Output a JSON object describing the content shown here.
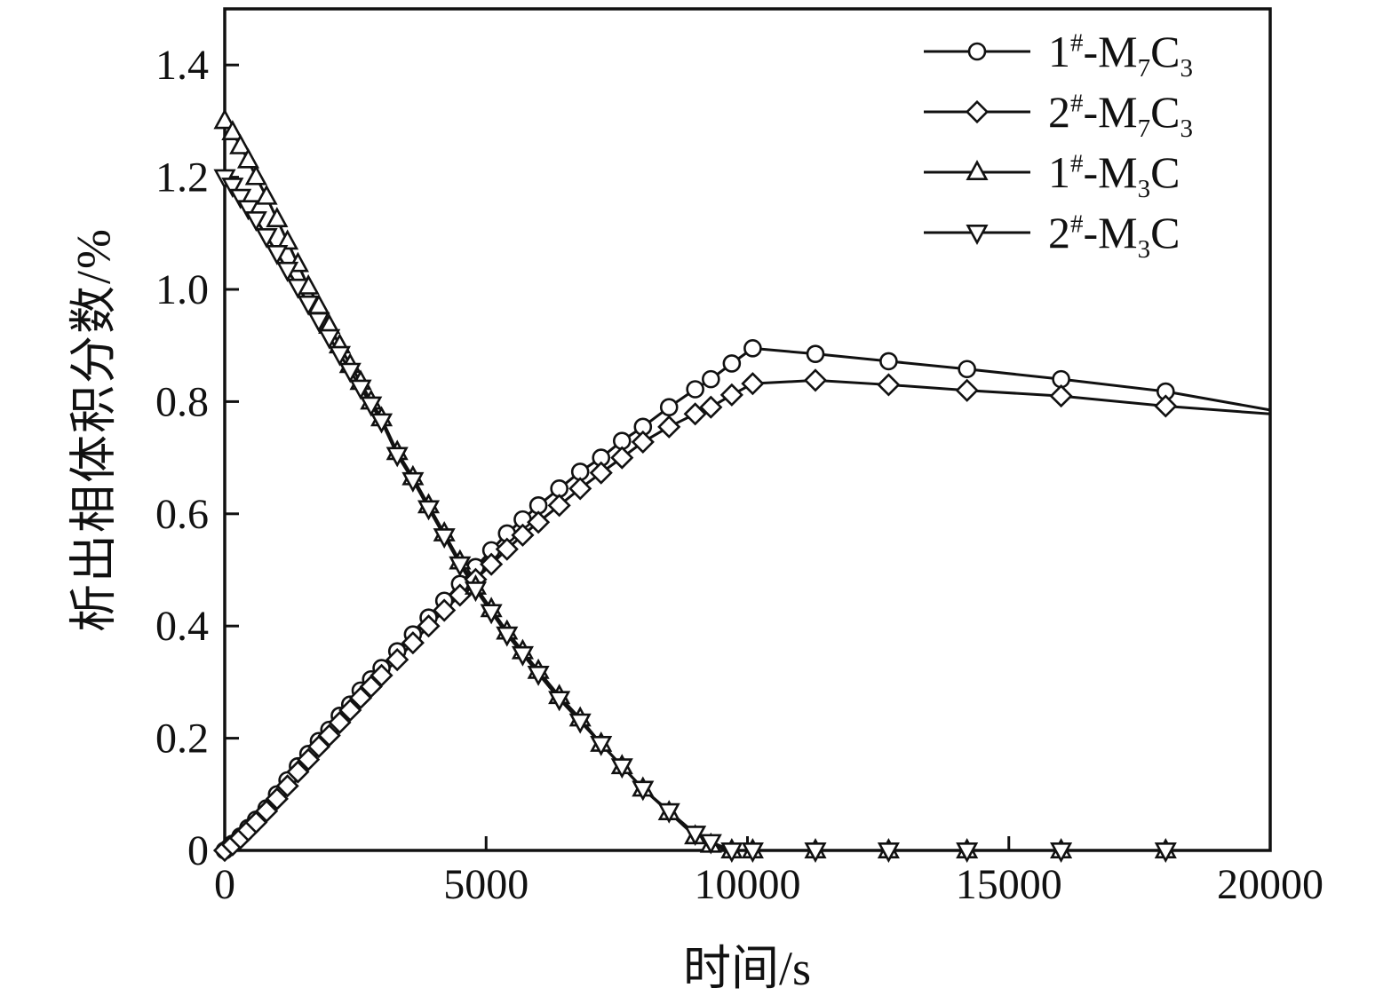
{
  "figure": {
    "background": "#ffffff",
    "line_color": "#111111"
  },
  "chart_data": {
    "type": "line",
    "title": "",
    "xlabel": "时间/s",
    "ylabel": "析出相体积分数/%",
    "xlim": [
      0,
      20000
    ],
    "ylim": [
      0,
      1.5
    ],
    "grid": false,
    "legend_position": "top-right",
    "x_ticks": [
      0,
      5000,
      10000,
      15000,
      20000
    ],
    "x_tick_labels": [
      "0",
      "5000",
      "10000",
      "15000",
      "20000"
    ],
    "y_ticks": [
      0,
      0.2,
      0.4,
      0.6,
      0.8,
      1.0,
      1.2,
      1.4
    ],
    "y_tick_labels": [
      "0",
      "0.2",
      "0.4",
      "0.6",
      "0.8",
      "1.0",
      "1.2",
      "1.4"
    ],
    "x": [
      0,
      150,
      300,
      450,
      600,
      800,
      1000,
      1200,
      1400,
      1600,
      1800,
      2000,
      2200,
      2400,
      2600,
      2800,
      3000,
      3300,
      3600,
      3900,
      4200,
      4500,
      4800,
      5100,
      5400,
      5700,
      6000,
      6400,
      6800,
      7200,
      7600,
      8000,
      8500,
      9000,
      9300,
      9700,
      10100,
      11300,
      12700,
      14200,
      16000,
      18000,
      20000
    ],
    "series": [
      {
        "name": "1#-M7C3",
        "marker": "circle",
        "label_segments": [
          {
            "t": "1"
          },
          {
            "t": "#",
            "s": "sup"
          },
          {
            "t": "-M"
          },
          {
            "t": "7",
            "s": "sub"
          },
          {
            "t": "C"
          },
          {
            "t": "3",
            "s": "sub"
          }
        ],
        "values": [
          0,
          0.012,
          0.025,
          0.04,
          0.055,
          0.075,
          0.1,
          0.125,
          0.15,
          0.172,
          0.195,
          0.215,
          0.24,
          0.26,
          0.285,
          0.305,
          0.325,
          0.355,
          0.385,
          0.415,
          0.445,
          0.475,
          0.505,
          0.535,
          0.565,
          0.59,
          0.615,
          0.645,
          0.675,
          0.7,
          0.73,
          0.755,
          0.79,
          0.822,
          0.84,
          0.868,
          0.895,
          0.885,
          0.872,
          0.858,
          0.84,
          0.818,
          0.785
        ]
      },
      {
        "name": "2#-M7C3",
        "marker": "diamond",
        "label_segments": [
          {
            "t": "2"
          },
          {
            "t": "#",
            "s": "sup"
          },
          {
            "t": "-M"
          },
          {
            "t": "7",
            "s": "sub"
          },
          {
            "t": "C"
          },
          {
            "t": "3",
            "s": "sub"
          }
        ],
        "values": [
          0,
          0.01,
          0.022,
          0.036,
          0.05,
          0.07,
          0.092,
          0.115,
          0.14,
          0.162,
          0.185,
          0.205,
          0.228,
          0.25,
          0.272,
          0.292,
          0.312,
          0.34,
          0.37,
          0.4,
          0.428,
          0.455,
          0.483,
          0.51,
          0.537,
          0.562,
          0.585,
          0.615,
          0.645,
          0.673,
          0.7,
          0.728,
          0.755,
          0.778,
          0.79,
          0.812,
          0.832,
          0.838,
          0.83,
          0.82,
          0.81,
          0.792,
          0.778
        ]
      },
      {
        "name": "1#-M3C",
        "marker": "triangle-up",
        "label_segments": [
          {
            "t": "1"
          },
          {
            "t": "#",
            "s": "sup"
          },
          {
            "t": "-M"
          },
          {
            "t": "3",
            "s": "sub"
          },
          {
            "t": "C"
          }
        ],
        "values": [
          1.3,
          1.28,
          1.255,
          1.23,
          1.2,
          1.165,
          1.125,
          1.085,
          1.045,
          1.005,
          0.97,
          0.935,
          0.9,
          0.865,
          0.835,
          0.8,
          0.77,
          0.71,
          0.665,
          0.615,
          0.565,
          0.515,
          0.47,
          0.43,
          0.39,
          0.355,
          0.32,
          0.275,
          0.235,
          0.19,
          0.15,
          0.11,
          0.068,
          0.025,
          0.01,
          0,
          0,
          0,
          0,
          0,
          0,
          0,
          0
        ]
      },
      {
        "name": "2#-M3C",
        "marker": "triangle-down",
        "label_segments": [
          {
            "t": "2"
          },
          {
            "t": "#",
            "s": "sup"
          },
          {
            "t": "-M"
          },
          {
            "t": "3",
            "s": "sub"
          },
          {
            "t": "C"
          }
        ],
        "values": [
          1.2,
          1.185,
          1.165,
          1.145,
          1.125,
          1.095,
          1.065,
          1.035,
          1.005,
          0.975,
          0.945,
          0.915,
          0.885,
          0.855,
          0.825,
          0.795,
          0.765,
          0.705,
          0.66,
          0.61,
          0.56,
          0.51,
          0.465,
          0.425,
          0.385,
          0.35,
          0.315,
          0.27,
          0.23,
          0.19,
          0.15,
          0.11,
          0.07,
          0.03,
          0.015,
          0,
          0,
          0,
          0,
          0,
          0,
          0,
          0
        ]
      }
    ]
  }
}
